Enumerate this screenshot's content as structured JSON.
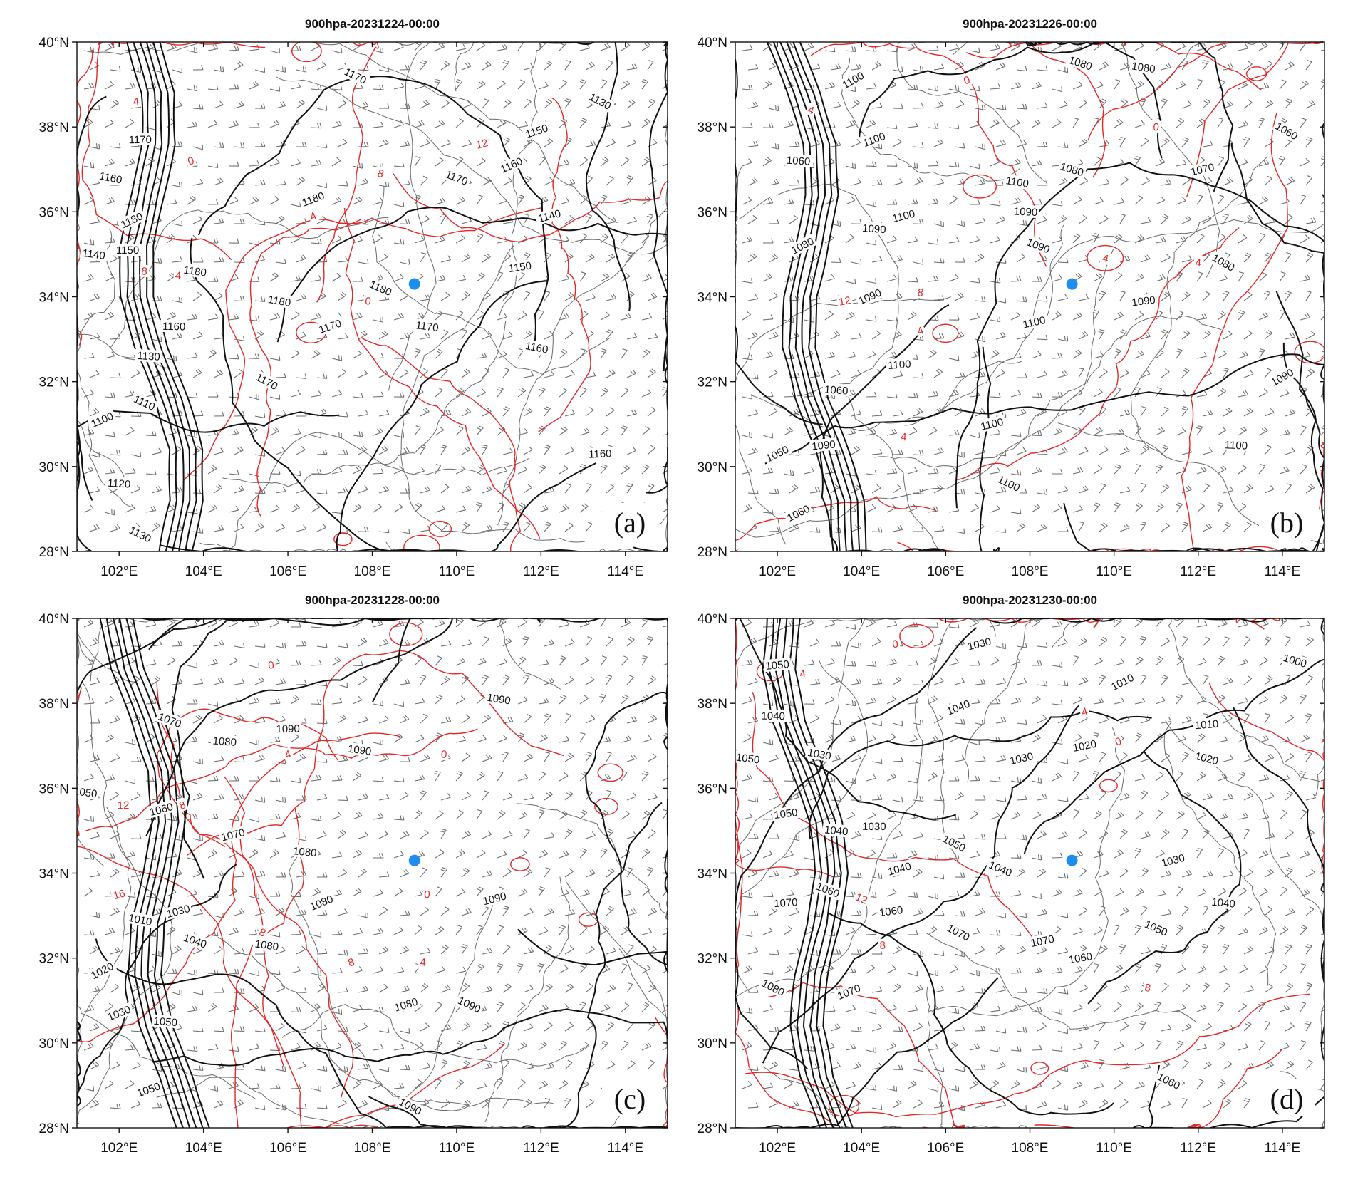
{
  "colors": {
    "geopotential": "#111111",
    "temperature": "#e32626",
    "boundaries": "#6a6a6a",
    "wind": "#6e6e6e",
    "station": "#1f8ef1"
  },
  "axes": {
    "lon_ticks": [
      "102°E",
      "104°E",
      "106°E",
      "108°E",
      "110°E",
      "112°E",
      "114°E"
    ],
    "lat_ticks": [
      "40°N",
      "38°N",
      "36°N",
      "34°N",
      "32°N",
      "30°N",
      "28°N"
    ],
    "lon_range": [
      101,
      115
    ],
    "lat_range": [
      28,
      40
    ]
  },
  "station": {
    "lon": 109.0,
    "lat": 34.3,
    "icon": "station-dot"
  },
  "panels": [
    {
      "id": "a",
      "title": "900hpa-20231224-00:00",
      "letter": "(a)",
      "black_labels": [
        {
          "text": "1170",
          "lon": 107.6,
          "lat": 39.2
        },
        {
          "text": "1170",
          "lon": 102.5,
          "lat": 37.7
        },
        {
          "text": "1160",
          "lon": 101.8,
          "lat": 36.8
        },
        {
          "text": "1180",
          "lon": 102.3,
          "lat": 35.8
        },
        {
          "text": "1140",
          "lon": 101.4,
          "lat": 35.0
        },
        {
          "text": "1150",
          "lon": 102.2,
          "lat": 35.1
        },
        {
          "text": "1180",
          "lon": 103.8,
          "lat": 34.6
        },
        {
          "text": "1180",
          "lon": 106.6,
          "lat": 36.3
        },
        {
          "text": "1180",
          "lon": 108.2,
          "lat": 34.2
        },
        {
          "text": "1180",
          "lon": 105.8,
          "lat": 33.9
        },
        {
          "text": "1170",
          "lon": 107.0,
          "lat": 33.3
        },
        {
          "text": "1170",
          "lon": 109.3,
          "lat": 33.3
        },
        {
          "text": "1160",
          "lon": 103.3,
          "lat": 33.3
        },
        {
          "text": "1130",
          "lon": 102.7,
          "lat": 32.6
        },
        {
          "text": "1110",
          "lon": 102.6,
          "lat": 31.5
        },
        {
          "text": "1100",
          "lon": 101.6,
          "lat": 31.1
        },
        {
          "text": "1120",
          "lon": 102.0,
          "lat": 29.6
        },
        {
          "text": "1130",
          "lon": 102.5,
          "lat": 28.4
        },
        {
          "text": "1170",
          "lon": 105.5,
          "lat": 32.0
        },
        {
          "text": "1170",
          "lon": 110.0,
          "lat": 36.8
        },
        {
          "text": "1160",
          "lon": 111.3,
          "lat": 37.1
        },
        {
          "text": "1150",
          "lon": 111.9,
          "lat": 37.9
        },
        {
          "text": "1130",
          "lon": 113.4,
          "lat": 38.6
        },
        {
          "text": "1140",
          "lon": 112.2,
          "lat": 35.9
        },
        {
          "text": "1150",
          "lon": 111.5,
          "lat": 34.7
        },
        {
          "text": "1160",
          "lon": 111.9,
          "lat": 32.8
        },
        {
          "text": "1160",
          "lon": 113.4,
          "lat": 30.3
        }
      ],
      "red_labels": [
        {
          "text": "4",
          "lon": 102.4,
          "lat": 38.6
        },
        {
          "text": "0",
          "lon": 103.7,
          "lat": 37.2
        },
        {
          "text": "8",
          "lon": 108.2,
          "lat": 36.9
        },
        {
          "text": "4",
          "lon": 106.6,
          "lat": 35.9
        },
        {
          "text": "12",
          "lon": 110.6,
          "lat": 37.6
        },
        {
          "text": "8",
          "lon": 102.6,
          "lat": 34.6
        },
        {
          "text": "4",
          "lon": 103.4,
          "lat": 34.5
        },
        {
          "text": "0",
          "lon": 107.9,
          "lat": 33.9
        }
      ]
    },
    {
      "id": "b",
      "title": "900hpa-20231226-00:00",
      "letter": "(b)",
      "black_labels": [
        {
          "text": "1100",
          "lon": 103.8,
          "lat": 39.1
        },
        {
          "text": "1080",
          "lon": 109.2,
          "lat": 39.5
        },
        {
          "text": "1080",
          "lon": 110.7,
          "lat": 39.4
        },
        {
          "text": "1100",
          "lon": 104.3,
          "lat": 37.7
        },
        {
          "text": "1060",
          "lon": 102.5,
          "lat": 37.2
        },
        {
          "text": "1100",
          "lon": 107.7,
          "lat": 36.7
        },
        {
          "text": "1090",
          "lon": 107.9,
          "lat": 36.0
        },
        {
          "text": "1080",
          "lon": 109.0,
          "lat": 37.0
        },
        {
          "text": "1060",
          "lon": 114.1,
          "lat": 37.9
        },
        {
          "text": "1070",
          "lon": 112.1,
          "lat": 37.0
        },
        {
          "text": "1090",
          "lon": 104.3,
          "lat": 35.6
        },
        {
          "text": "1100",
          "lon": 105.0,
          "lat": 35.9
        },
        {
          "text": "1090",
          "lon": 108.2,
          "lat": 35.2
        },
        {
          "text": "1080",
          "lon": 102.6,
          "lat": 35.2
        },
        {
          "text": "1090",
          "lon": 104.2,
          "lat": 34.0
        },
        {
          "text": "1080",
          "lon": 112.6,
          "lat": 34.8
        },
        {
          "text": "1100",
          "lon": 108.1,
          "lat": 33.4
        },
        {
          "text": "1090",
          "lon": 110.7,
          "lat": 33.9
        },
        {
          "text": "1100",
          "lon": 104.9,
          "lat": 32.4
        },
        {
          "text": "1060",
          "lon": 103.4,
          "lat": 31.8
        },
        {
          "text": "1090",
          "lon": 103.1,
          "lat": 30.5
        },
        {
          "text": "1050",
          "lon": 102.0,
          "lat": 30.3
        },
        {
          "text": "1060",
          "lon": 102.5,
          "lat": 28.9
        },
        {
          "text": "1090",
          "lon": 114.0,
          "lat": 32.1
        },
        {
          "text": "1100",
          "lon": 107.1,
          "lat": 31.0
        },
        {
          "text": "1100",
          "lon": 107.5,
          "lat": 29.6
        },
        {
          "text": "1100",
          "lon": 112.9,
          "lat": 30.5
        }
      ],
      "red_labels": [
        {
          "text": "0",
          "lon": 106.5,
          "lat": 39.1
        },
        {
          "text": "4",
          "lon": 102.8,
          "lat": 38.4
        },
        {
          "text": "0",
          "lon": 111.0,
          "lat": 38.0
        },
        {
          "text": "4",
          "lon": 109.8,
          "lat": 34.9
        },
        {
          "text": "4",
          "lon": 112.0,
          "lat": 34.8
        },
        {
          "text": "12",
          "lon": 103.6,
          "lat": 33.9
        },
        {
          "text": "8",
          "lon": 105.4,
          "lat": 34.1
        },
        {
          "text": "4",
          "lon": 105.4,
          "lat": 33.2
        },
        {
          "text": "4",
          "lon": 105.0,
          "lat": 30.7
        }
      ]
    },
    {
      "id": "c",
      "title": "900hpa-20231228-00:00",
      "letter": "(c)",
      "black_labels": [
        {
          "text": "1090",
          "lon": 106.0,
          "lat": 37.4
        },
        {
          "text": "1070",
          "lon": 103.2,
          "lat": 37.6
        },
        {
          "text": "1080",
          "lon": 104.5,
          "lat": 37.1
        },
        {
          "text": "1090",
          "lon": 107.7,
          "lat": 36.9
        },
        {
          "text": "1090",
          "lon": 111.0,
          "lat": 38.1
        },
        {
          "text": "1050",
          "lon": 101.2,
          "lat": 35.9
        },
        {
          "text": "1060",
          "lon": 103.0,
          "lat": 35.5
        },
        {
          "text": "1070",
          "lon": 104.7,
          "lat": 34.9
        },
        {
          "text": "1080",
          "lon": 106.4,
          "lat": 34.5
        },
        {
          "text": "1080",
          "lon": 106.8,
          "lat": 33.3
        },
        {
          "text": "1090",
          "lon": 110.9,
          "lat": 33.4
        },
        {
          "text": "1030",
          "lon": 103.4,
          "lat": 33.1
        },
        {
          "text": "1010",
          "lon": 102.5,
          "lat": 32.9
        },
        {
          "text": "1040",
          "lon": 103.8,
          "lat": 32.4
        },
        {
          "text": "1080",
          "lon": 105.5,
          "lat": 32.3
        },
        {
          "text": "1020",
          "lon": 101.6,
          "lat": 31.7
        },
        {
          "text": "1050",
          "lon": 103.1,
          "lat": 30.5
        },
        {
          "text": "1030",
          "lon": 102.0,
          "lat": 30.7
        },
        {
          "text": "1080",
          "lon": 108.8,
          "lat": 30.9
        },
        {
          "text": "1090",
          "lon": 110.3,
          "lat": 30.9
        },
        {
          "text": "1090",
          "lon": 108.9,
          "lat": 28.5
        },
        {
          "text": "1050",
          "lon": 102.7,
          "lat": 28.9
        }
      ],
      "red_labels": [
        {
          "text": "0",
          "lon": 105.6,
          "lat": 38.9
        },
        {
          "text": "4",
          "lon": 106.0,
          "lat": 36.8
        },
        {
          "text": "0",
          "lon": 109.7,
          "lat": 36.8
        },
        {
          "text": "12",
          "lon": 102.1,
          "lat": 35.6
        },
        {
          "text": "8",
          "lon": 103.5,
          "lat": 35.6
        },
        {
          "text": "16",
          "lon": 102.0,
          "lat": 33.5
        },
        {
          "text": "0",
          "lon": 109.3,
          "lat": 33.5
        },
        {
          "text": "8",
          "lon": 105.4,
          "lat": 32.6
        },
        {
          "text": "8",
          "lon": 107.5,
          "lat": 31.9
        },
        {
          "text": "4",
          "lon": 109.2,
          "lat": 31.9
        }
      ]
    },
    {
      "id": "d",
      "title": "900hpa-20231230-00:00",
      "letter": "(d)",
      "black_labels": [
        {
          "text": "1030",
          "lon": 106.8,
          "lat": 39.4
        },
        {
          "text": "1050",
          "lon": 102.0,
          "lat": 38.9
        },
        {
          "text": "1010",
          "lon": 110.2,
          "lat": 38.5
        },
        {
          "text": "1000",
          "lon": 114.3,
          "lat": 39.0
        },
        {
          "text": "1040",
          "lon": 101.9,
          "lat": 37.7
        },
        {
          "text": "1040",
          "lon": 106.3,
          "lat": 37.9
        },
        {
          "text": "1010",
          "lon": 112.2,
          "lat": 37.5
        },
        {
          "text": "1050",
          "lon": 101.3,
          "lat": 36.7
        },
        {
          "text": "1030",
          "lon": 103.0,
          "lat": 36.8
        },
        {
          "text": "1030",
          "lon": 107.8,
          "lat": 36.7
        },
        {
          "text": "1020",
          "lon": 109.3,
          "lat": 37.0
        },
        {
          "text": "1020",
          "lon": 112.2,
          "lat": 36.7
        },
        {
          "text": "1050",
          "lon": 102.2,
          "lat": 35.4
        },
        {
          "text": "1040",
          "lon": 103.4,
          "lat": 35.0
        },
        {
          "text": "1030",
          "lon": 104.3,
          "lat": 35.1
        },
        {
          "text": "1050",
          "lon": 106.2,
          "lat": 34.7
        },
        {
          "text": "1040",
          "lon": 104.9,
          "lat": 34.1
        },
        {
          "text": "1040",
          "lon": 107.3,
          "lat": 34.1
        },
        {
          "text": "1030",
          "lon": 111.4,
          "lat": 34.3
        },
        {
          "text": "1070",
          "lon": 102.2,
          "lat": 33.3
        },
        {
          "text": "1060",
          "lon": 103.2,
          "lat": 33.6
        },
        {
          "text": "1060",
          "lon": 104.7,
          "lat": 33.1
        },
        {
          "text": "1040",
          "lon": 112.6,
          "lat": 33.3
        },
        {
          "text": "1070",
          "lon": 106.3,
          "lat": 32.6
        },
        {
          "text": "1070",
          "lon": 108.3,
          "lat": 32.4
        },
        {
          "text": "1050",
          "lon": 111.0,
          "lat": 32.7
        },
        {
          "text": "1060",
          "lon": 109.2,
          "lat": 32.0
        },
        {
          "text": "1080",
          "lon": 101.9,
          "lat": 31.3
        },
        {
          "text": "1070",
          "lon": 103.7,
          "lat": 31.2
        },
        {
          "text": "1060",
          "lon": 111.3,
          "lat": 29.1
        }
      ],
      "red_labels": [
        {
          "text": "0",
          "lon": 104.8,
          "lat": 39.4
        },
        {
          "text": "4",
          "lon": 102.6,
          "lat": 38.7
        },
        {
          "text": "4",
          "lon": 109.3,
          "lat": 37.8
        },
        {
          "text": "0",
          "lon": 110.1,
          "lat": 37.1
        },
        {
          "text": "12",
          "lon": 104.0,
          "lat": 33.4
        },
        {
          "text": "8",
          "lon": 104.5,
          "lat": 32.3
        },
        {
          "text": "8",
          "lon": 110.8,
          "lat": 31.3
        }
      ]
    }
  ]
}
